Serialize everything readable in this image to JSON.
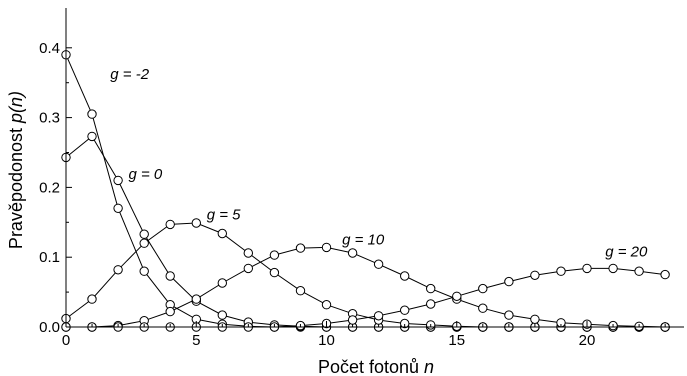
{
  "chart_data": {
    "type": "line",
    "xlabel": "Počet fotonů",
    "xlabel_var": "n",
    "ylabel": "Pravěpodonost",
    "ylabel_var": "p(n)",
    "xlim": [
      0,
      23.3
    ],
    "ylim": [
      0,
      0.43
    ],
    "x_ticks": [
      0,
      5,
      10,
      15,
      20
    ],
    "y_ticks": [
      0.0,
      0.1,
      0.2,
      0.3,
      0.4
    ],
    "y_tick_labels": [
      "0.0",
      "0.1",
      "0.2",
      "0.3",
      "0.4"
    ],
    "grid": false,
    "legend": "none",
    "line_color": "#000000",
    "marker": "open-circle",
    "series": [
      {
        "annotation": "g = -2",
        "x": [
          0,
          1,
          2,
          3,
          4,
          5,
          6,
          7,
          8,
          9,
          10,
          11,
          12,
          13,
          14,
          15,
          16,
          17,
          18,
          19,
          20,
          21,
          22,
          23
        ],
        "values": [
          0.39,
          0.305,
          0.17,
          0.08,
          0.032,
          0.011,
          0.004,
          0.001,
          0,
          0,
          0,
          0,
          0,
          0,
          0,
          0,
          0,
          0,
          0,
          0,
          0,
          0,
          0,
          0
        ]
      },
      {
        "annotation": "g = 0",
        "x": [
          0,
          1,
          2,
          3,
          4,
          5,
          6,
          7,
          8,
          9,
          10,
          11,
          12,
          13,
          14,
          15,
          16,
          17,
          18,
          19,
          20,
          21,
          22,
          23
        ],
        "values": [
          0.243,
          0.273,
          0.21,
          0.133,
          0.073,
          0.037,
          0.017,
          0.007,
          0.003,
          0.001,
          0,
          0,
          0,
          0,
          0,
          0,
          0,
          0,
          0,
          0,
          0,
          0,
          0,
          0
        ]
      },
      {
        "annotation": "g = 5",
        "x": [
          0,
          1,
          2,
          3,
          4,
          5,
          6,
          7,
          8,
          9,
          10,
          11,
          12,
          13,
          14,
          15,
          16,
          17,
          18,
          19,
          20,
          21,
          22,
          23
        ],
        "values": [
          0.012,
          0.04,
          0.082,
          0.12,
          0.147,
          0.149,
          0.134,
          0.106,
          0.078,
          0.052,
          0.032,
          0.019,
          0.01,
          0.005,
          0.003,
          0.001,
          0,
          0,
          0,
          0,
          0,
          0,
          0,
          0
        ]
      },
      {
        "annotation": "g = 10",
        "x": [
          0,
          1,
          2,
          3,
          4,
          5,
          6,
          7,
          8,
          9,
          10,
          11,
          12,
          13,
          14,
          15,
          16,
          17,
          18,
          19,
          20,
          21,
          22,
          23
        ],
        "values": [
          0,
          0,
          0.002,
          0.009,
          0.022,
          0.04,
          0.063,
          0.084,
          0.103,
          0.113,
          0.114,
          0.106,
          0.09,
          0.073,
          0.055,
          0.04,
          0.027,
          0.017,
          0.011,
          0.006,
          0.004,
          0.002,
          0.001,
          0
        ]
      },
      {
        "annotation": "g = 20",
        "x": [
          0,
          1,
          2,
          3,
          4,
          5,
          6,
          7,
          8,
          9,
          10,
          11,
          12,
          13,
          14,
          15,
          16,
          17,
          18,
          19,
          20,
          21,
          22,
          23
        ],
        "values": [
          0,
          0,
          0,
          0,
          0,
          0,
          0,
          0,
          0,
          0.002,
          0.005,
          0.01,
          0.016,
          0.024,
          0.033,
          0.044,
          0.055,
          0.065,
          0.074,
          0.08,
          0.084,
          0.084,
          0.08,
          0.075
        ]
      }
    ]
  }
}
